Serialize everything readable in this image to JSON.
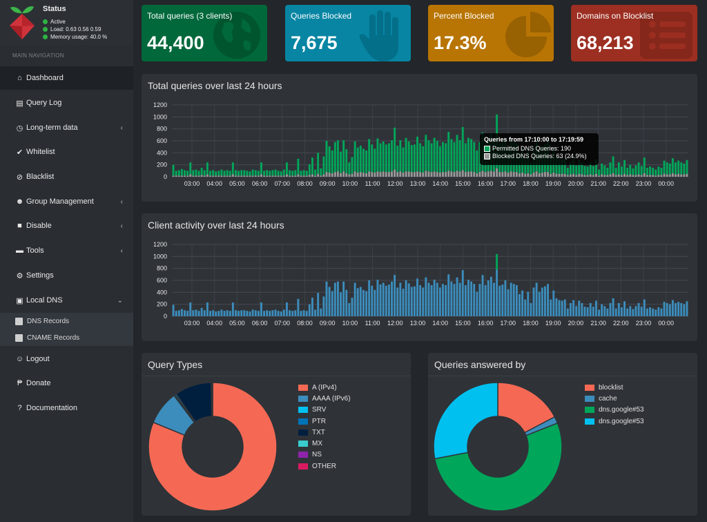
{
  "status": {
    "title": "Status",
    "active": "Active",
    "load": "Load:  0.63  0.56  0.59",
    "memory": "Memory usage:  40.0 %"
  },
  "nav": {
    "header": "MAIN NAVIGATION",
    "items": [
      {
        "label": "Dashboard",
        "icon": "home-icon"
      },
      {
        "label": "Query Log",
        "icon": "file-icon"
      },
      {
        "label": "Long-term data",
        "icon": "clock-icon"
      },
      {
        "label": "Whitelist",
        "icon": "check-circle-icon"
      },
      {
        "label": "Blacklist",
        "icon": "ban-icon"
      },
      {
        "label": "Group Management",
        "icon": "users-icon"
      },
      {
        "label": "Disable",
        "icon": "stop-icon"
      },
      {
        "label": "Tools",
        "icon": "folder-icon"
      },
      {
        "label": "Settings",
        "icon": "cogs-icon"
      },
      {
        "label": "Local DNS",
        "icon": "address-book-icon"
      },
      {
        "label": "Logout",
        "icon": "user-times-icon"
      },
      {
        "label": "Donate",
        "icon": "paypal-icon"
      },
      {
        "label": "Documentation",
        "icon": "question-circle-icon"
      }
    ],
    "sub_items": [
      {
        "label": "DNS Records"
      },
      {
        "label": "CNAME Records"
      }
    ]
  },
  "tiles": [
    {
      "label": "Total queries (3 clients)",
      "value": "44,400",
      "color": "#00a65a",
      "icon": "globe-icon"
    },
    {
      "label": "Queries Blocked",
      "value": "7,675",
      "color": "#00c0ef",
      "icon": "hand-icon"
    },
    {
      "label": "Percent Blocked",
      "value": "17.3%",
      "color": "#f39c12",
      "icon": "pie-chart-icon"
    },
    {
      "label": "Domains on Blocklist",
      "value": "68,213",
      "color": "#dd4b39",
      "icon": "list-icon"
    }
  ],
  "panels": {
    "queries_title": "Total queries over last 24 hours",
    "clients_title": "Client activity over last 24 hours",
    "types_title": "Query Types",
    "answered_title": "Queries answered by"
  },
  "tooltip": {
    "title": "Queries from 17:10:00 to 17:19:59",
    "permitted": "Permitted DNS Queries: 190",
    "blocked": "Blocked DNS Queries: 63 (24.9%)"
  },
  "chart_data": [
    {
      "type": "bar",
      "title": "Total queries over last 24 hours",
      "ylim": [
        0,
        1200
      ],
      "yticks": [
        0,
        200,
        400,
        600,
        800,
        1000,
        1200
      ],
      "xticks": [
        "03:00",
        "04:00",
        "05:00",
        "06:00",
        "07:00",
        "08:00",
        "09:00",
        "10:00",
        "11:00",
        "12:00",
        "13:00",
        "14:00",
        "15:00",
        "16:00",
        "17:00",
        "18:00",
        "19:00",
        "20:00",
        "21:00",
        "22:00",
        "23:00",
        "00:00"
      ],
      "series": [
        {
          "name": "Permitted DNS Queries",
          "color": "#00a65a"
        },
        {
          "name": "Blocked DNS Queries",
          "color": "#999999"
        }
      ],
      "colors": {
        "permitted": "#00a65a",
        "blocked": "#999999"
      },
      "permitted": [
        180,
        80,
        90,
        110,
        90,
        80,
        200,
        90,
        100,
        80,
        120,
        90,
        200,
        80,
        90,
        70,
        80,
        100,
        80,
        90,
        80,
        200,
        90,
        80,
        90,
        90,
        80,
        70,
        100,
        90,
        80,
        200,
        80,
        90,
        80,
        90,
        100,
        80,
        70,
        100,
        200,
        90,
        80,
        90,
        260,
        80,
        90,
        80,
        180,
        280,
        100,
        350,
        120,
        300,
        520,
        440,
        380,
        500,
        520,
        360,
        520,
        400,
        200,
        280,
        500,
        420,
        440,
        400,
        380,
        540,
        460,
        400,
        550,
        480,
        500,
        460,
        480,
        520,
        700,
        440,
        520,
        420,
        560,
        500,
        450,
        460,
        580,
        480,
        440,
        600,
        520,
        480,
        560,
        520,
        440,
        500,
        480,
        650,
        540,
        500,
        600,
        520,
        720,
        480,
        560,
        540,
        500,
        380,
        500,
        640,
        480,
        560,
        620,
        520,
        900,
        480,
        500,
        560,
        420,
        520,
        500,
        480,
        340,
        400,
        260,
        380,
        200,
        440,
        520,
        380,
        440,
        460,
        500,
        260,
        400,
        280,
        250,
        240,
        260,
        120,
        200,
        250,
        160,
        240,
        200,
        150,
        140,
        200,
        150,
        240,
        100,
        180,
        160,
        120,
        200,
        280,
        120,
        200,
        140,
        230,
        120,
        160,
        110,
        160,
        200,
        150,
        260,
        120,
        140,
        120,
        100,
        140,
        120,
        220,
        200,
        180,
        250,
        200,
        220,
        200,
        180,
        230
      ],
      "blocked": [
        20,
        20,
        20,
        20,
        20,
        20,
        40,
        20,
        20,
        20,
        30,
        20,
        40,
        20,
        20,
        20,
        20,
        20,
        20,
        20,
        20,
        40,
        20,
        20,
        20,
        20,
        20,
        20,
        20,
        20,
        20,
        40,
        20,
        20,
        20,
        20,
        20,
        20,
        20,
        20,
        40,
        20,
        20,
        20,
        40,
        20,
        20,
        20,
        30,
        40,
        20,
        50,
        20,
        40,
        80,
        70,
        60,
        80,
        90,
        60,
        90,
        60,
        40,
        50,
        90,
        70,
        80,
        70,
        60,
        90,
        80,
        70,
        90,
        80,
        90,
        80,
        80,
        90,
        120,
        80,
        90,
        70,
        90,
        90,
        80,
        80,
        90,
        80,
        70,
        100,
        90,
        80,
        90,
        80,
        70,
        80,
        80,
        100,
        90,
        80,
        100,
        90,
        110,
        80,
        90,
        90,
        80,
        60,
        80,
        100,
        80,
        90,
        100,
        90,
        140,
        80,
        80,
        90,
        70,
        90,
        80,
        80,
        60,
        70,
        50,
        60,
        40,
        70,
        90,
        60,
        70,
        80,
        80,
        50,
        70,
        50,
        50,
        50,
        50,
        30,
        40,
        50,
        30,
        50,
        40,
        30,
        30,
        40,
        30,
        50,
        20,
        40,
        30,
        30,
        40,
        60,
        30,
        40,
        30,
        50,
        30,
        40,
        30,
        30,
        40,
        30,
        60,
        30,
        30,
        30,
        20,
        30,
        30,
        50,
        40,
        40,
        60,
        40,
        50,
        40,
        40,
        50
      ]
    },
    {
      "type": "bar",
      "title": "Client activity over last 24 hours",
      "ylim": [
        0,
        1200
      ],
      "yticks": [
        0,
        200,
        400,
        600,
        800,
        1000,
        1200
      ],
      "xticks": [
        "03:00",
        "04:00",
        "05:00",
        "06:00",
        "07:00",
        "08:00",
        "09:00",
        "10:00",
        "11:00",
        "12:00",
        "13:00",
        "14:00",
        "15:00",
        "16:00",
        "17:00",
        "18:00",
        "19:00",
        "20:00",
        "21:00",
        "22:00",
        "23:00",
        "00:00"
      ],
      "series": [
        {
          "color": "#3c8dbc"
        },
        {
          "color": "#00a65a"
        }
      ],
      "client_a": [
        190,
        90,
        100,
        120,
        100,
        90,
        230,
        100,
        110,
        90,
        140,
        100,
        230,
        90,
        100,
        80,
        90,
        110,
        90,
        100,
        90,
        230,
        100,
        90,
        100,
        100,
        90,
        80,
        110,
        100,
        90,
        230,
        90,
        100,
        90,
        100,
        110,
        90,
        80,
        110,
        230,
        100,
        90,
        100,
        290,
        90,
        100,
        90,
        200,
        310,
        110,
        390,
        130,
        330,
        580,
        490,
        420,
        560,
        580,
        400,
        580,
        440,
        220,
        310,
        560,
        470,
        490,
        440,
        420,
        600,
        510,
        440,
        610,
        530,
        560,
        510,
        530,
        580,
        690,
        480,
        560,
        460,
        600,
        550,
        490,
        500,
        630,
        520,
        480,
        650,
        560,
        520,
        610,
        560,
        480,
        540,
        520,
        700,
        580,
        540,
        650,
        560,
        770,
        520,
        610,
        580,
        540,
        410,
        540,
        690,
        520,
        600,
        660,
        560,
        780,
        510,
        530,
        600,
        450,
        560,
        540,
        520,
        370,
        430,
        280,
        410,
        220,
        480,
        560,
        410,
        480,
        500,
        540,
        280,
        430,
        300,
        270,
        260,
        280,
        130,
        220,
        270,
        170,
        260,
        220,
        160,
        150,
        220,
        160,
        260,
        110,
        200,
        170,
        130,
        220,
        300,
        130,
        220,
        150,
        250,
        130,
        170,
        120,
        170,
        220,
        160,
        280,
        130,
        150,
        130,
        110,
        150,
        130,
        240,
        220,
        200,
        270,
        220,
        240,
        220,
        200,
        250
      ],
      "client_b": [
        0,
        0,
        0,
        0,
        0,
        0,
        0,
        0,
        0,
        0,
        0,
        0,
        0,
        0,
        0,
        0,
        0,
        0,
        0,
        0,
        0,
        0,
        0,
        0,
        0,
        0,
        0,
        0,
        0,
        0,
        0,
        0,
        0,
        0,
        0,
        0,
        0,
        0,
        0,
        0,
        0,
        0,
        0,
        0,
        0,
        0,
        0,
        0,
        0,
        0,
        0,
        0,
        0,
        0,
        0,
        0,
        0,
        0,
        0,
        0,
        0,
        0,
        0,
        0,
        0,
        0,
        0,
        0,
        0,
        0,
        0,
        0,
        0,
        0,
        0,
        0,
        0,
        0,
        0,
        0,
        0,
        0,
        0,
        0,
        0,
        0,
        0,
        0,
        0,
        0,
        0,
        0,
        0,
        0,
        0,
        0,
        0,
        0,
        0,
        0,
        0,
        0,
        0,
        0,
        0,
        0,
        0,
        0,
        0,
        0,
        0,
        0,
        0,
        0,
        260,
        0,
        0,
        0,
        0,
        0,
        0,
        0,
        0,
        0,
        0,
        0,
        0,
        0,
        0,
        0,
        0,
        0,
        0,
        0,
        0,
        0,
        0,
        0,
        0,
        0,
        0,
        0,
        0,
        0,
        0,
        0,
        0,
        0,
        0,
        0,
        0,
        0,
        0,
        0,
        0,
        0,
        0,
        0,
        0,
        0,
        0,
        0,
        0,
        0,
        0,
        0,
        0,
        0,
        0,
        0,
        0,
        0,
        0,
        0,
        0,
        0,
        0,
        0,
        0,
        0,
        0,
        0
      ]
    },
    {
      "type": "pie",
      "title": "Query Types",
      "labels": [
        "A (IPv4)",
        "AAAA (IPv6)",
        "SRV",
        "PTR",
        "TXT",
        "MX",
        "NS",
        "OTHER"
      ],
      "values": [
        81.2,
        8.5,
        0.3,
        0.4,
        9.2,
        0.1,
        0.1,
        0.2
      ],
      "colors": [
        "#f56954",
        "#3c8dbc",
        "#00c0ef",
        "#0073b7",
        "#001f3f",
        "#39cccc",
        "#8e24aa",
        "#d81b60"
      ]
    },
    {
      "type": "pie",
      "title": "Queries answered by",
      "labels": [
        "blocklist",
        "cache",
        "dns.google#53",
        "dns.google#53"
      ],
      "values": [
        17.3,
        1.7,
        53.0,
        28.0
      ],
      "colors": [
        "#f56954",
        "#3c8dbc",
        "#00a65a",
        "#00c0ef"
      ]
    }
  ]
}
